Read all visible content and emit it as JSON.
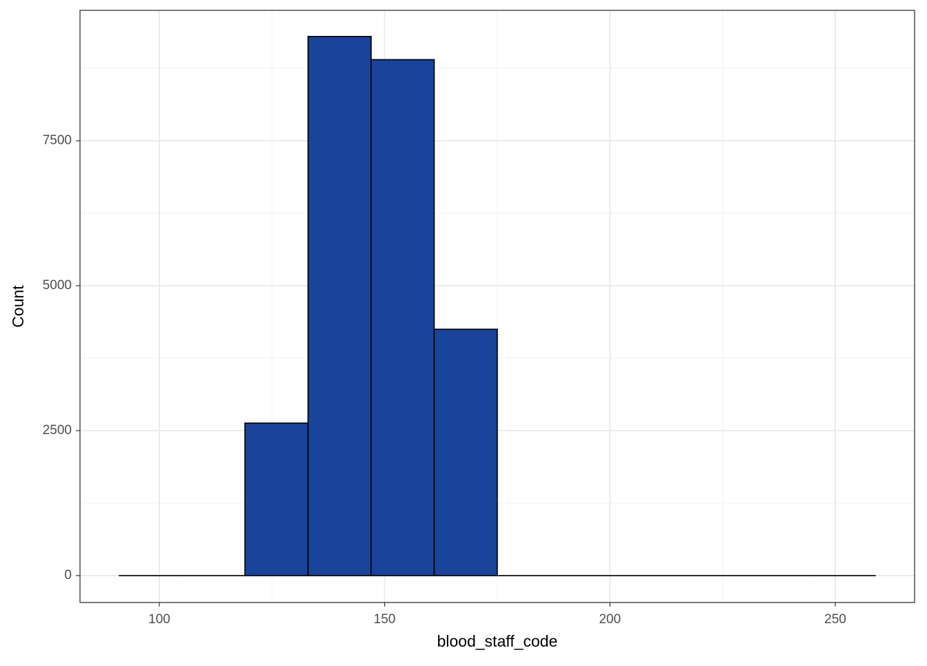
{
  "chart_data": {
    "type": "histogram",
    "x_label": "blood_staff_code",
    "y_label": "Count",
    "bins": [
      91,
      105,
      119,
      133,
      147,
      161,
      175,
      189,
      203,
      217,
      231,
      245,
      259
    ],
    "counts": [
      0,
      0,
      2630,
      9300,
      8900,
      4250,
      0,
      0,
      0,
      0,
      0,
      0
    ],
    "color": "#1a439a",
    "edge_color": "#000000",
    "xlim": [
      82.4,
      267.6
    ],
    "ylim": [
      -464,
      9750
    ],
    "xticks": [
      100,
      150,
      200,
      250
    ],
    "yticks": [
      0,
      2500,
      5000,
      7500
    ],
    "x_minor_grid": [
      125,
      175,
      225
    ],
    "y_minor_grid": [
      1250,
      3750,
      6250,
      8750
    ],
    "grid": true
  }
}
